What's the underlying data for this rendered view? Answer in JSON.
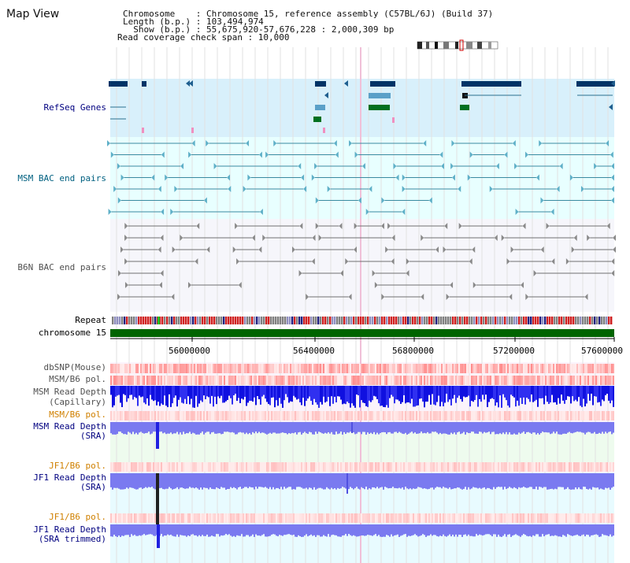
{
  "page": {
    "title": "Map View"
  },
  "header": {
    "line1": "Chromosome    : Chromosome 15, reference assembly (C57BL/6J) (Build 37)",
    "line2": "Length (b.p.) : 103,494,974",
    "line3": "  Show (b.p.) : 55,675,920-57,676,228 : 2,000,309 bp",
    "line4": "Read coverage check span : 10,000"
  },
  "tracks": {
    "refseq": "RefSeq Genes",
    "msm_bac": "MSM BAC end pairs",
    "b6n_bac": "B6N BAC end pairs",
    "repeat": "Repeat",
    "chromosome": "chromosome 15",
    "dbsnp": "dbSNP(Mouse)",
    "msm_b6_pol_1": "MSM/B6 pol.",
    "msm_depth_cap": "MSM Read Depth",
    "msm_depth_cap_sub": "(Capillary)",
    "msm_b6_pol_2": "MSM/B6 pol.",
    "msm_depth_sra": "MSM Read Depth",
    "msm_depth_sra_sub": "(SRA)",
    "jf1_b6_pol_1": "JF1/B6 pol.",
    "jf1_depth_sra": "JF1 Read Depth",
    "jf1_depth_sra_sub": "(SRA)",
    "jf1_b6_pol_2": "JF1/B6 pol.",
    "jf1_depth_trim": "JF1 Read Depth",
    "jf1_depth_trim_sub": "(SRA trimmed)"
  },
  "axis": {
    "ticks": [
      "56000000",
      "56400000",
      "56800000",
      "57200000",
      "57600000"
    ]
  },
  "colors": {
    "navy": "#000080",
    "teal": "#006080",
    "gray": "#505050",
    "orange": "#d08000",
    "chrom_green": "#006400",
    "refseq_bg": "#d8f0fb",
    "msm_bg": "#e8ffff",
    "b6n_bg": "#f6f6fb"
  }
}
